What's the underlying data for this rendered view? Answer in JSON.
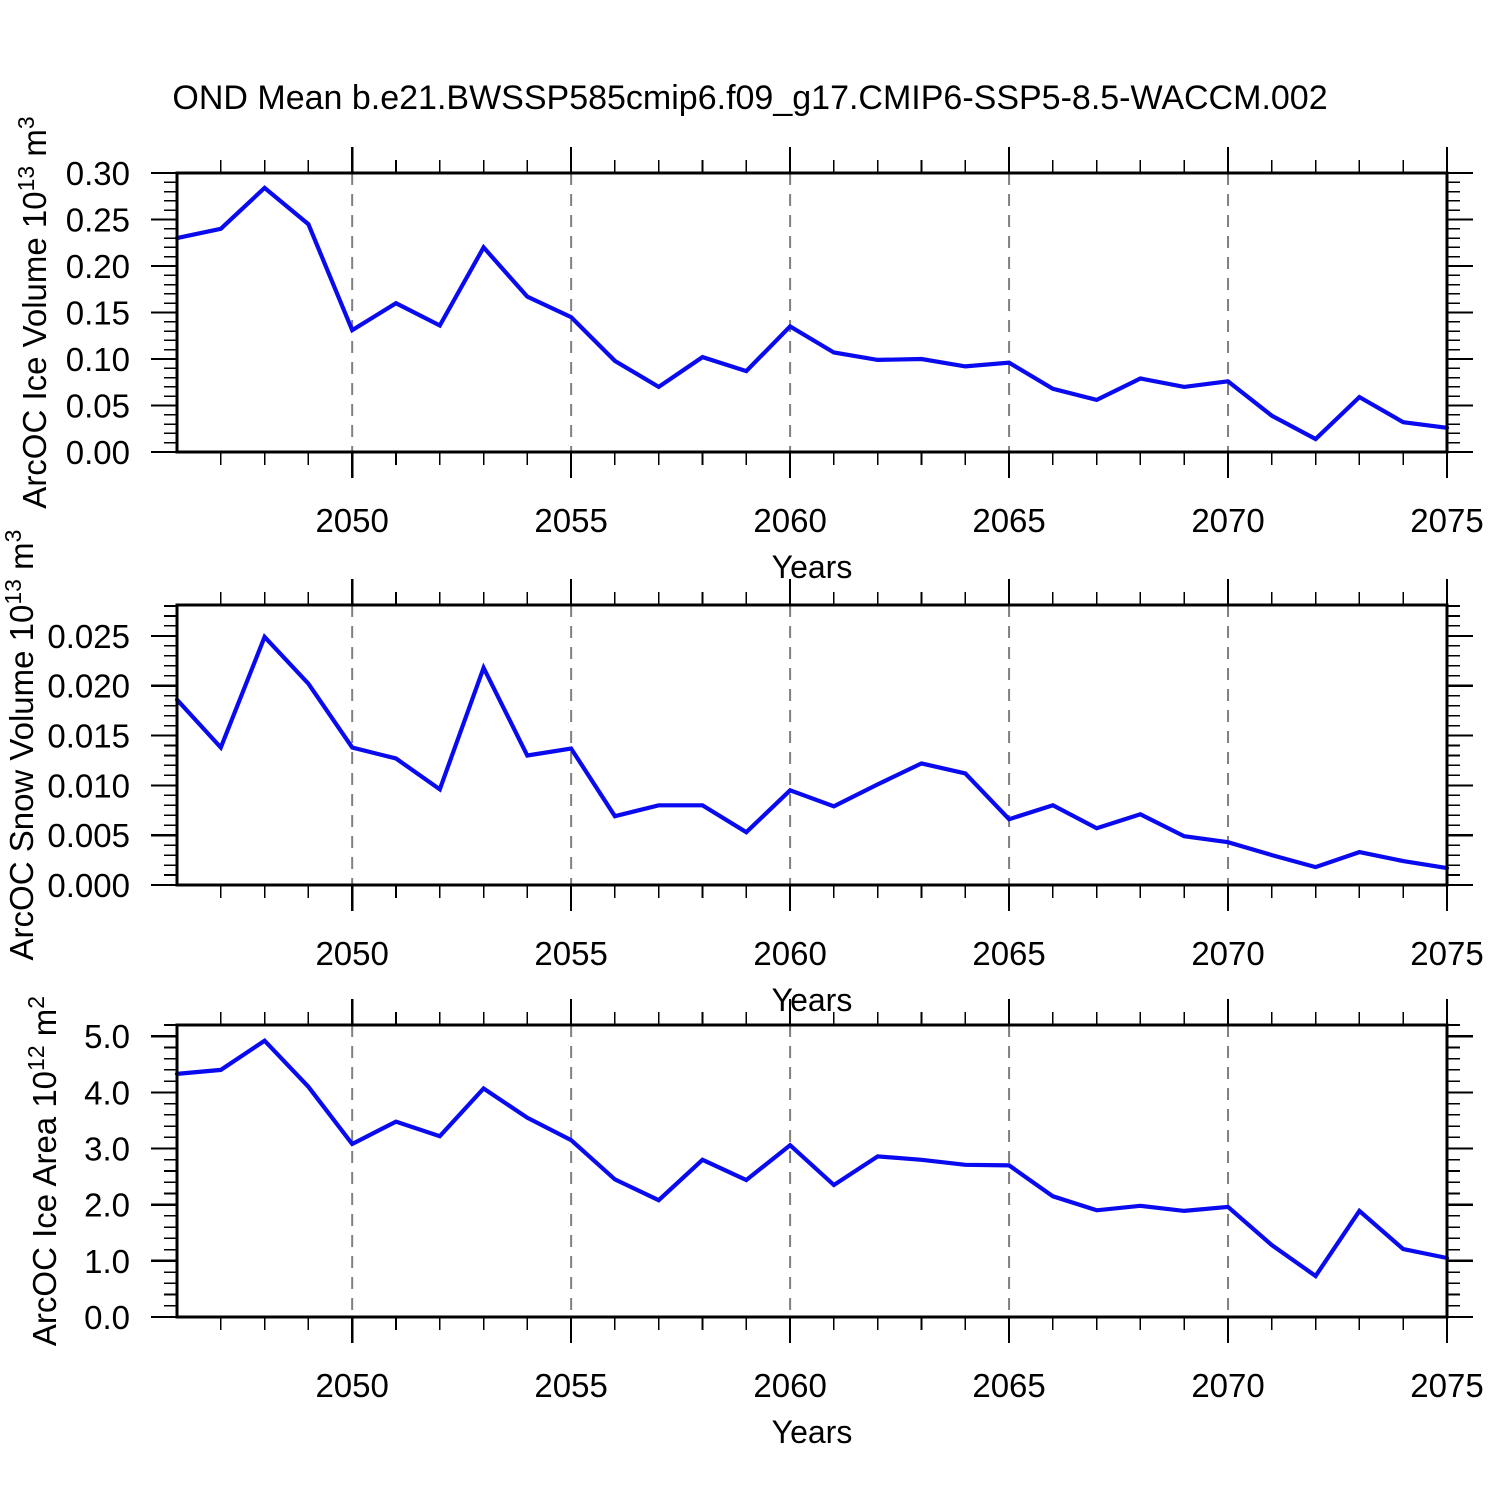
{
  "figure": {
    "title": "OND Mean b.e21.BWSSP585cmip6.f09_g17.CMIP6-SSP5-8.5-WACCM.002",
    "line_color": "#0a0af0",
    "grid_color": "#808080",
    "axis_color": "#000000",
    "background": "#ffffff"
  },
  "chart_data": [
    {
      "id": "ice-volume",
      "type": "line",
      "title": "",
      "xlabel": "Years",
      "ylabel": "ArcOC Ice Volume 10^13 m^3",
      "ylabel_segments": [
        {
          "text": "ArcOC Ice Volume 10"
        },
        {
          "text": "13",
          "sup": true
        },
        {
          "text": " m"
        },
        {
          "text": "3",
          "sup": true
        }
      ],
      "x": [
        2046,
        2047,
        2048,
        2049,
        2050,
        2051,
        2052,
        2053,
        2054,
        2055,
        2056,
        2057,
        2058,
        2059,
        2060,
        2061,
        2062,
        2063,
        2064,
        2065,
        2066,
        2067,
        2068,
        2069,
        2070,
        2071,
        2072,
        2073,
        2074,
        2075
      ],
      "values": [
        0.23,
        0.24,
        0.284,
        0.245,
        0.131,
        0.16,
        0.136,
        0.22,
        0.167,
        0.145,
        0.098,
        0.07,
        0.102,
        0.087,
        0.135,
        0.107,
        0.099,
        0.1,
        0.092,
        0.096,
        0.068,
        0.056,
        0.079,
        0.07,
        0.076,
        0.039,
        0.014,
        0.059,
        0.032,
        0.026
      ],
      "xlim": [
        2046,
        2075
      ],
      "ylim": [
        0,
        0.3
      ],
      "ytick_major": 0.05,
      "ytick_minor": 0.01,
      "ytick_decimals": 2,
      "xticks_labeled": [
        2050,
        2055,
        2060,
        2065,
        2070,
        2075
      ],
      "grid_x": [
        2050,
        2055,
        2060,
        2065,
        2070
      ],
      "grid": "vertical-dashed"
    },
    {
      "id": "snow-volume",
      "type": "line",
      "title": "",
      "xlabel": "Years",
      "ylabel": "ArcOC Snow Volume 10^13 m^3",
      "ylabel_segments": [
        {
          "text": "ArcOC Snow Volume 10"
        },
        {
          "text": "13",
          "sup": true
        },
        {
          "text": " m"
        },
        {
          "text": "3",
          "sup": true
        }
      ],
      "x": [
        2046,
        2047,
        2048,
        2049,
        2050,
        2051,
        2052,
        2053,
        2054,
        2055,
        2056,
        2057,
        2058,
        2059,
        2060,
        2061,
        2062,
        2063,
        2064,
        2065,
        2066,
        2067,
        2068,
        2069,
        2070,
        2071,
        2072,
        2073,
        2074,
        2075
      ],
      "values": [
        0.0186,
        0.0138,
        0.0249,
        0.0202,
        0.0138,
        0.0127,
        0.0096,
        0.0218,
        0.013,
        0.0137,
        0.0069,
        0.008,
        0.008,
        0.0053,
        0.0095,
        0.0079,
        0.0101,
        0.0122,
        0.0112,
        0.0066,
        0.008,
        0.0057,
        0.0071,
        0.0049,
        0.0043,
        0.003,
        0.0018,
        0.0033,
        0.0024,
        0.0017
      ],
      "xlim": [
        2046,
        2075
      ],
      "ylim": [
        0,
        0.0281
      ],
      "ytick_major": 0.005,
      "ytick_minor": 0.001,
      "ytick_decimals": 3,
      "xticks_labeled": [
        2050,
        2055,
        2060,
        2065,
        2070,
        2075
      ],
      "grid_x": [
        2050,
        2055,
        2060,
        2065,
        2070
      ],
      "grid": "vertical-dashed"
    },
    {
      "id": "ice-area",
      "type": "line",
      "title": "",
      "xlabel": "Years",
      "ylabel": "ArcOC Ice Area 10^12 m^2",
      "ylabel_segments": [
        {
          "text": "ArcOC Ice Area 10"
        },
        {
          "text": "12",
          "sup": true
        },
        {
          "text": " m"
        },
        {
          "text": "2",
          "sup": true
        }
      ],
      "x": [
        2046,
        2047,
        2048,
        2049,
        2050,
        2051,
        2052,
        2053,
        2054,
        2055,
        2056,
        2057,
        2058,
        2059,
        2060,
        2061,
        2062,
        2063,
        2064,
        2065,
        2066,
        2067,
        2068,
        2069,
        2070,
        2071,
        2072,
        2073,
        2074,
        2075
      ],
      "values": [
        4.33,
        4.4,
        4.92,
        4.1,
        3.08,
        3.48,
        3.22,
        4.07,
        3.55,
        3.15,
        2.45,
        2.08,
        2.8,
        2.44,
        3.06,
        2.35,
        2.86,
        2.8,
        2.71,
        2.7,
        2.15,
        1.9,
        1.98,
        1.89,
        1.96,
        1.28,
        0.73,
        1.89,
        1.21,
        1.05
      ],
      "xlim": [
        2046,
        2075
      ],
      "ylim": [
        0,
        5.2
      ],
      "ytick_major": 1.0,
      "ytick_minor": 0.2,
      "ytick_decimals": 1,
      "xticks_labeled": [
        2050,
        2055,
        2060,
        2065,
        2070,
        2075
      ],
      "grid_x": [
        2050,
        2055,
        2060,
        2065,
        2070
      ],
      "grid": "vertical-dashed"
    }
  ]
}
